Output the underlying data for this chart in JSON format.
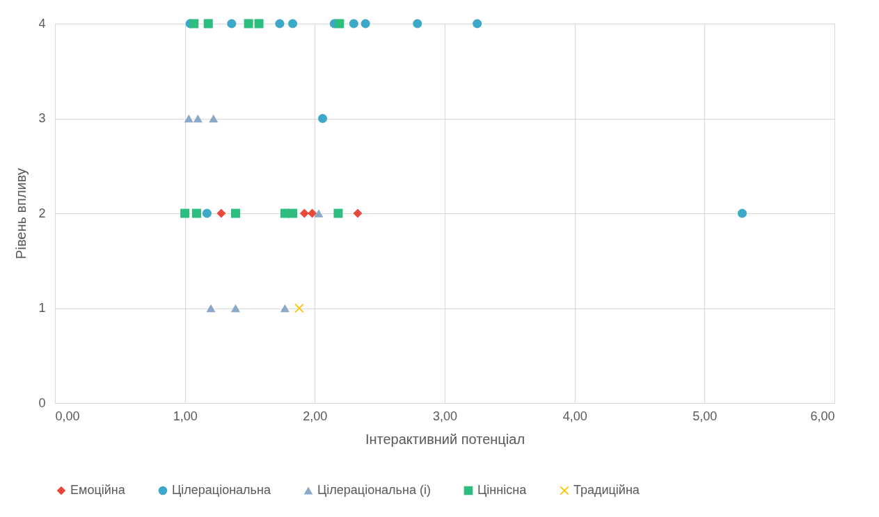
{
  "chart_data": {
    "type": "scatter",
    "xlabel": "Інтерактивний потенціал",
    "ylabel": "Рівень впливу",
    "xlim": [
      0,
      6
    ],
    "xticks": [
      {
        "value": 0,
        "label": "0,00"
      },
      {
        "value": 1,
        "label": "1,00"
      },
      {
        "value": 2,
        "label": "2,00"
      },
      {
        "value": 3,
        "label": "3,00"
      },
      {
        "value": 4,
        "label": "4,00"
      },
      {
        "value": 5,
        "label": "5,00"
      },
      {
        "value": 6,
        "label": "6,00"
      }
    ],
    "ylim": [
      0,
      4
    ],
    "yticks": [
      0,
      1,
      2,
      3,
      4
    ],
    "grid": true,
    "legend": "bottom",
    "series": [
      {
        "name": "Емоційна",
        "color": "#e8473c",
        "marker": "diamond",
        "x": [
          1.28,
          1.92,
          1.98,
          2.33
        ],
        "values": [
          2,
          2,
          2,
          2
        ]
      },
      {
        "name": "Цілераціональна",
        "color": "#3ea8c8",
        "marker": "circle",
        "x": [
          1.04,
          1.36,
          1.73,
          1.83,
          2.15,
          2.3,
          2.39,
          2.79,
          3.25,
          2.06,
          1.17,
          5.29
        ],
        "values": [
          4,
          4,
          4,
          4,
          4,
          4,
          4,
          4,
          4,
          3,
          2,
          2
        ]
      },
      {
        "name": "Цілераціональна (і)",
        "color": "#8aa8c8",
        "marker": "triangle",
        "x": [
          1.03,
          1.1,
          1.22,
          2.03,
          1.2,
          1.39,
          1.77
        ],
        "values": [
          3,
          3,
          3,
          2,
          1,
          1,
          1
        ]
      },
      {
        "name": "Ціннісна",
        "color": "#2dbd7e",
        "marker": "square",
        "x": [
          1.07,
          1.18,
          1.49,
          1.57,
          2.19,
          1.0,
          1.09,
          1.39,
          1.77,
          1.83,
          2.18
        ],
        "values": [
          4,
          4,
          4,
          4,
          4,
          2,
          2,
          2,
          2,
          2,
          2
        ]
      },
      {
        "name": "Традиційна",
        "color": "#ffc000",
        "marker": "cross",
        "x": [
          1.88
        ],
        "values": [
          1
        ]
      }
    ]
  }
}
